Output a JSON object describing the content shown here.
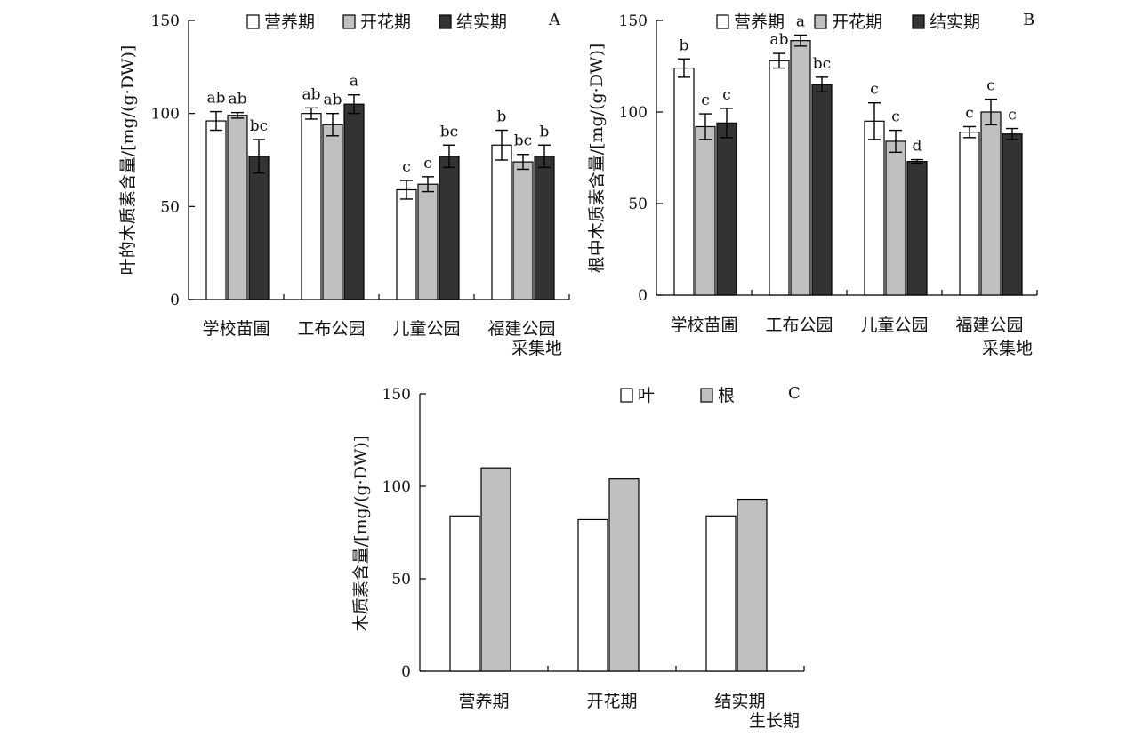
{
  "colors": {
    "营养期": "#ffffff",
    "开花期": "#c0c0c0",
    "结实期": "#333333",
    "叶": "#ffffff",
    "根": "#c0c0c0",
    "stroke": "#000000"
  },
  "chart_data": [
    {
      "panel": "A",
      "type": "bar",
      "ylabel": "叶的木质素含量/[mg/(g·DW)]",
      "xlabel": "采集地",
      "ylim": [
        0,
        150
      ],
      "yticks": [
        "0",
        "50",
        "100",
        "150"
      ],
      "categories": [
        "学校苗圃",
        "工布公园",
        "儿童公园",
        "福建公园"
      ],
      "legend": [
        "营养期",
        "开花期",
        "结实期"
      ],
      "series": [
        {
          "name": "营养期",
          "values": [
            96,
            100,
            59,
            83
          ],
          "errors": [
            5,
            3,
            5,
            8
          ],
          "labels": [
            "ab",
            "ab",
            "c",
            "b"
          ]
        },
        {
          "name": "开花期",
          "values": [
            99,
            94,
            62,
            74
          ],
          "errors": [
            1.5,
            6,
            4,
            4
          ],
          "labels": [
            "ab",
            "ab",
            "c",
            "bc"
          ]
        },
        {
          "name": "结实期",
          "values": [
            77,
            105,
            77,
            77
          ],
          "errors": [
            9,
            5,
            6,
            6
          ],
          "labels": [
            "bc",
            "a",
            "bc",
            "b"
          ]
        }
      ]
    },
    {
      "panel": "B",
      "type": "bar",
      "ylabel": "根中木质素含量/[mg/(g·DW)]",
      "xlabel": "采集地",
      "ylim": [
        0,
        150
      ],
      "yticks": [
        "0",
        "50",
        "100",
        "150"
      ],
      "categories": [
        "学校苗圃",
        "工布公园",
        "儿童公园",
        "福建公园"
      ],
      "legend": [
        "营养期",
        "开花期",
        "结实期"
      ],
      "series": [
        {
          "name": "营养期",
          "values": [
            124,
            128,
            95,
            89
          ],
          "errors": [
            5,
            4,
            10,
            3
          ],
          "labels": [
            "b",
            "ab",
            "c",
            "c"
          ]
        },
        {
          "name": "开花期",
          "values": [
            92,
            139,
            84,
            100
          ],
          "errors": [
            7,
            3,
            6,
            7
          ],
          "labels": [
            "c",
            "a",
            "c",
            "c"
          ]
        },
        {
          "name": "结实期",
          "values": [
            94,
            115,
            73,
            88
          ],
          "errors": [
            8,
            4,
            1,
            3
          ],
          "labels": [
            "c",
            "bc",
            "d",
            "c"
          ]
        }
      ]
    },
    {
      "panel": "C",
      "type": "bar",
      "ylabel": "木质素含量/[mg/(g·DW)]",
      "xlabel": "生长期",
      "ylim": [
        0,
        150
      ],
      "yticks": [
        "0",
        "50",
        "100",
        "150"
      ],
      "categories": [
        "营养期",
        "开花期",
        "结实期"
      ],
      "legend": [
        "叶",
        "根"
      ],
      "series": [
        {
          "name": "叶",
          "values": [
            84,
            82,
            84
          ]
        },
        {
          "name": "根",
          "values": [
            110,
            104,
            93
          ]
        }
      ]
    }
  ]
}
